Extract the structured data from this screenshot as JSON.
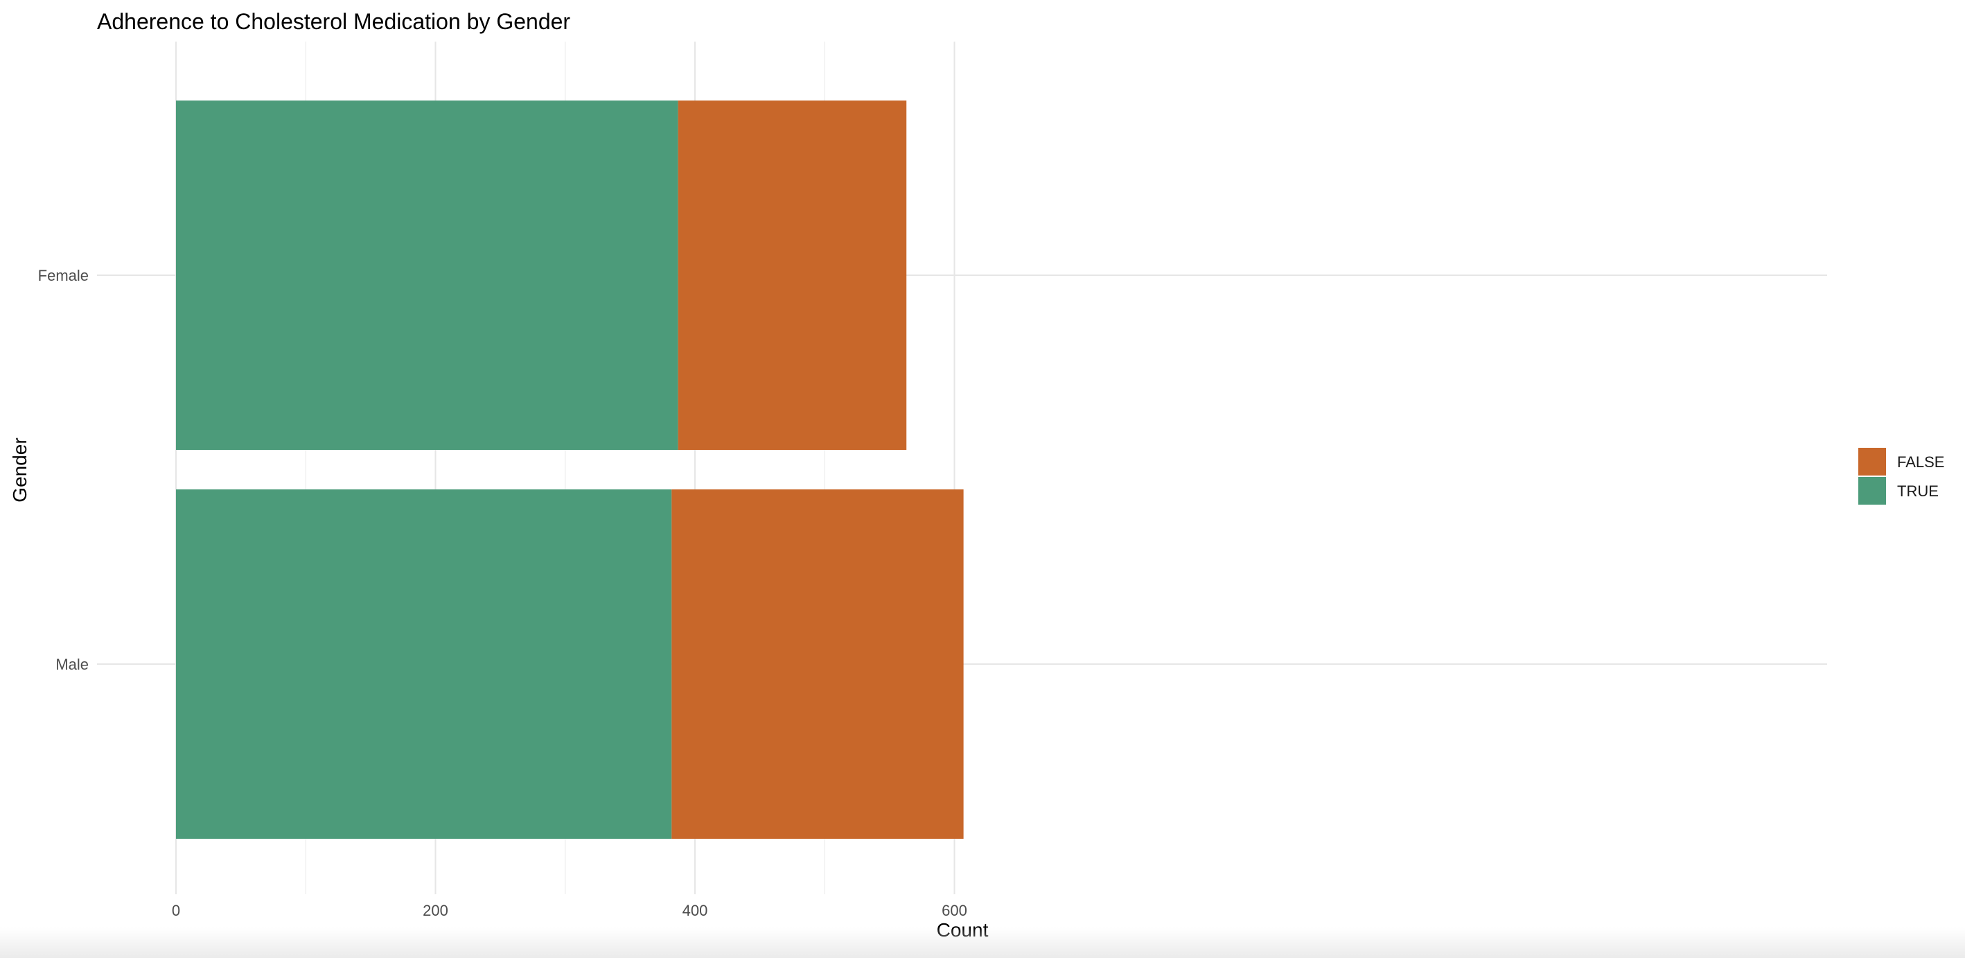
{
  "chart_data": {
    "type": "bar",
    "orientation": "horizontal",
    "stacked": true,
    "title": "Adherence to Cholesterol Medication by Gender",
    "xlabel": "Count",
    "ylabel": "Gender",
    "categories": [
      "Female",
      "Male"
    ],
    "series": [
      {
        "name": "TRUE",
        "values": [
          387,
          382
        ],
        "color": "#4C9B7A"
      },
      {
        "name": "FALSE",
        "values": [
          176,
          225
        ],
        "color": "#C8672A"
      }
    ],
    "xlim": [
      0,
      640
    ],
    "xticks": [
      0,
      200,
      400,
      600
    ],
    "xtick_labels": [
      "0",
      "200",
      "400",
      "600"
    ],
    "legend": {
      "placement": "right",
      "entries": [
        {
          "label": "FALSE",
          "color": "#C8672A"
        },
        {
          "label": "TRUE",
          "color": "#4C9B7A"
        }
      ]
    },
    "grid": true
  }
}
